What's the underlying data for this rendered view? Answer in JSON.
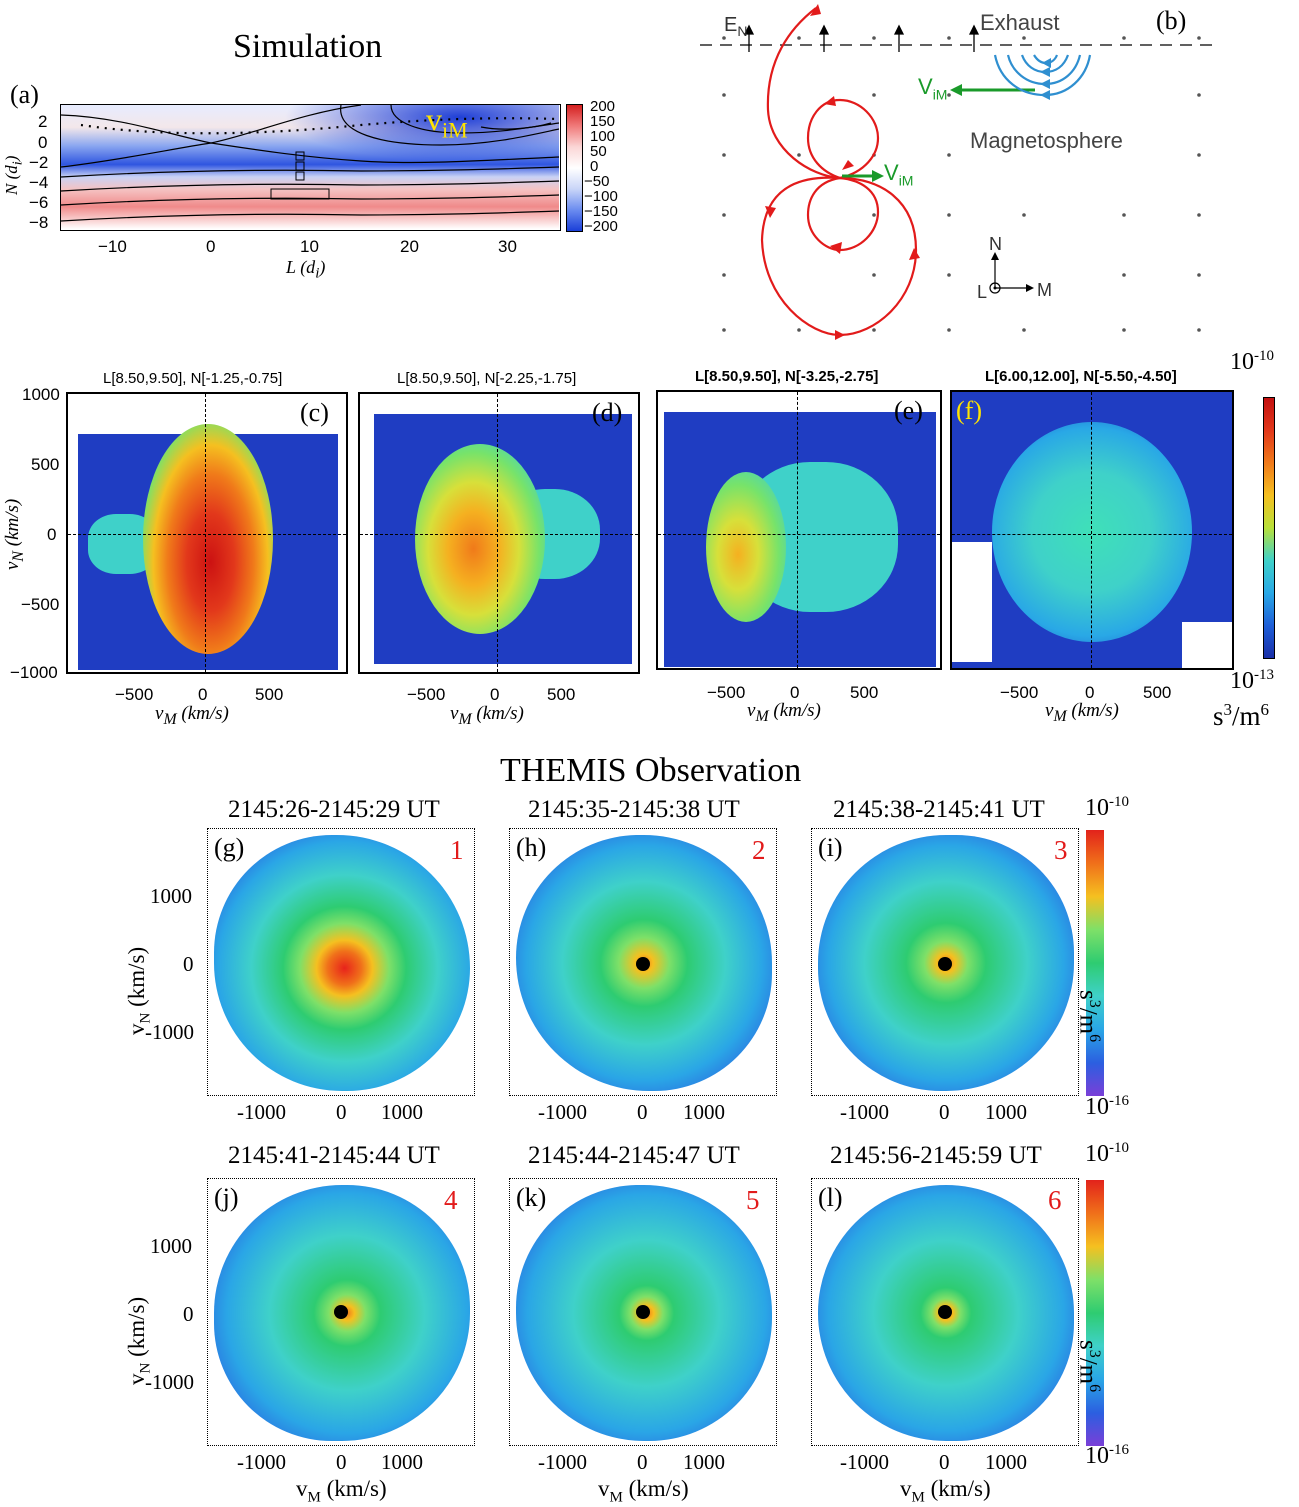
{
  "sim_title": "Simulation",
  "obs_title": "THEMIS Observation",
  "panel_a": {
    "label": "(a)",
    "annotation": "v",
    "annotation_sub": "iM",
    "ylabel": "N",
    "ylabel_unit": "(d",
    "ylabel_unit_sub": "i",
    "ylabel_unit_end": ")",
    "xlabel": "L",
    "xlabel_unit": "(d",
    "xlabel_unit_sub": "i",
    "xlabel_unit_end": ")",
    "yticks": [
      "2",
      "0",
      "−2",
      "−4",
      "−6",
      "−8"
    ],
    "xticks": [
      "−10",
      "0",
      "10",
      "20",
      "30"
    ],
    "colorbar_ticks": [
      "200",
      "150",
      "100",
      "50",
      "0",
      "−50",
      "−100",
      "−150",
      "−200"
    ]
  },
  "panel_b": {
    "label": "(b)",
    "en_label": "E",
    "en_sub": "N",
    "exhaust": "Exhaust",
    "magnetosphere": "Magnetosphere",
    "vim1": "V",
    "vim1_sub": "iM",
    "vim2": "V",
    "vim2_sub": "iM",
    "axis_n": "N",
    "axis_l": "L",
    "axis_m": "M"
  },
  "sim_panels": [
    {
      "label": "(c)",
      "title": "L[8.50,9.50], N[-1.25,-0.75]",
      "bold": false
    },
    {
      "label": "(d)",
      "title": "L[8.50,9.50], N[-2.25,-1.75]",
      "bold": false
    },
    {
      "label": "(e)",
      "title": "L[8.50,9.50], N[-3.25,-2.75]",
      "bold": true
    },
    {
      "label": "(f)",
      "title": "L[6.00,12.00], N[-5.50,-4.50]",
      "bold": true
    }
  ],
  "sim_axes": {
    "yticks": [
      "1000",
      "500",
      "0",
      "−500",
      "−1000"
    ],
    "xticks": [
      "−500",
      "0",
      "500"
    ],
    "ylabel": "v",
    "ylabel_sub": "N",
    "ylabel_unit": "(km/s)",
    "xlabel": "v",
    "xlabel_sub": "M",
    "xlabel_unit": "(km/s)"
  },
  "sim_colorbar": {
    "top": "10",
    "top_exp": "-10",
    "bottom": "10",
    "bottom_exp": "-13",
    "unit": "s",
    "unit_exp1": "3",
    "unit_mid": "/m",
    "unit_exp2": "6"
  },
  "obs_panels": [
    {
      "label": "(g)",
      "num": "1",
      "time": "2145:26-2145:29 UT"
    },
    {
      "label": "(h)",
      "num": "2",
      "time": "2145:35-2145:38 UT"
    },
    {
      "label": "(i)",
      "num": "3",
      "time": "2145:38-2145:41 UT"
    },
    {
      "label": "(j)",
      "num": "4",
      "time": "2145:41-2145:44 UT"
    },
    {
      "label": "(k)",
      "num": "5",
      "time": "2145:44-2145:47 UT"
    },
    {
      "label": "(l)",
      "num": "6",
      "time": "2145:56-2145:59 UT"
    }
  ],
  "obs_axes": {
    "yticks": [
      "1000",
      "0",
      "-1000"
    ],
    "xticks": [
      "-1000",
      "0",
      "1000"
    ],
    "ylabel": "v",
    "ylabel_sub": "N",
    "ylabel_unit": "(km/s)",
    "xlabel": "v",
    "xlabel_sub": "M",
    "xlabel_unit": "(km/s)"
  },
  "obs_colorbar": {
    "top": "10",
    "top_exp": "-10",
    "bottom": "10",
    "bottom_exp": "-16",
    "unit": "s",
    "unit_exp1": "3",
    "unit_mid": "/m",
    "unit_exp2": "6"
  },
  "colors": {
    "red_accent": "#e21b1b",
    "green_arrow": "#1a9a2a",
    "blue_arc": "#2f8fd0",
    "annotation_yellow": "#ffe400"
  }
}
